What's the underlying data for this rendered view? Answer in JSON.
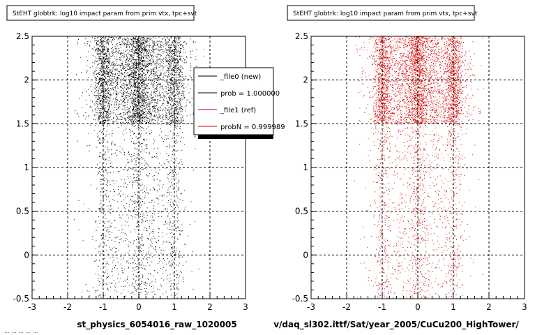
{
  "footer": "... ... ... ... ...",
  "chart_data": [
    {
      "type": "scatter",
      "title": "StEHT globtrk: log10 impact param from prim vtx, tpc+svt",
      "xlabel": "st_physics_6054016_raw_1020005",
      "ylabel": "",
      "xlim": [
        -3,
        3
      ],
      "ylim": [
        -0.5,
        2.5
      ],
      "x_ticks": [
        "-3",
        "-2",
        "-1",
        "0",
        "1",
        "2",
        "3"
      ],
      "y_ticks": [
        "-0.5",
        "0",
        "0.5",
        "1",
        "1.5",
        "2",
        "2.5"
      ],
      "grid": true,
      "marker_color": "#000000",
      "density": [
        {
          "y_range": [
            -0.5,
            1.5
          ],
          "relative": 0.35
        },
        {
          "y_range": [
            1.5,
            2.5
          ],
          "relative": 1.0
        }
      ],
      "x_bands": [
        -1,
        0,
        1
      ],
      "legend": {
        "placement": "top-right",
        "entries": [
          {
            "label": "_file0 (new)",
            "color": "#000000"
          },
          {
            "label": "prob = 1.000000",
            "color": "#000000"
          },
          {
            "label": "_file1 (ref)",
            "color": "#cc0000"
          },
          {
            "label": "probN = 0.999989",
            "color": "#cc0000"
          }
        ]
      }
    },
    {
      "type": "scatter",
      "title": "StEHT globtrk: log10 impact param from prim vtx, tpc+svt",
      "xlabel": "v/daq_sl302.ittf/Sat/year_2005/CuCu200_HighTower/",
      "ylabel": "",
      "xlim": [
        -3,
        3
      ],
      "ylim": [
        -0.5,
        2.5
      ],
      "x_ticks": [
        "-3",
        "-2",
        "-1",
        "0",
        "1",
        "2",
        "3"
      ],
      "y_ticks": [
        "-0.5",
        "0",
        "0.5",
        "1",
        "1.5",
        "2",
        "2.5"
      ],
      "grid": true,
      "marker_color": "#dd0000",
      "density": [
        {
          "y_range": [
            -0.5,
            1.5
          ],
          "relative": 0.35
        },
        {
          "y_range": [
            1.5,
            2.5
          ],
          "relative": 1.0
        }
      ],
      "x_bands": [
        -1,
        0,
        1
      ]
    }
  ]
}
